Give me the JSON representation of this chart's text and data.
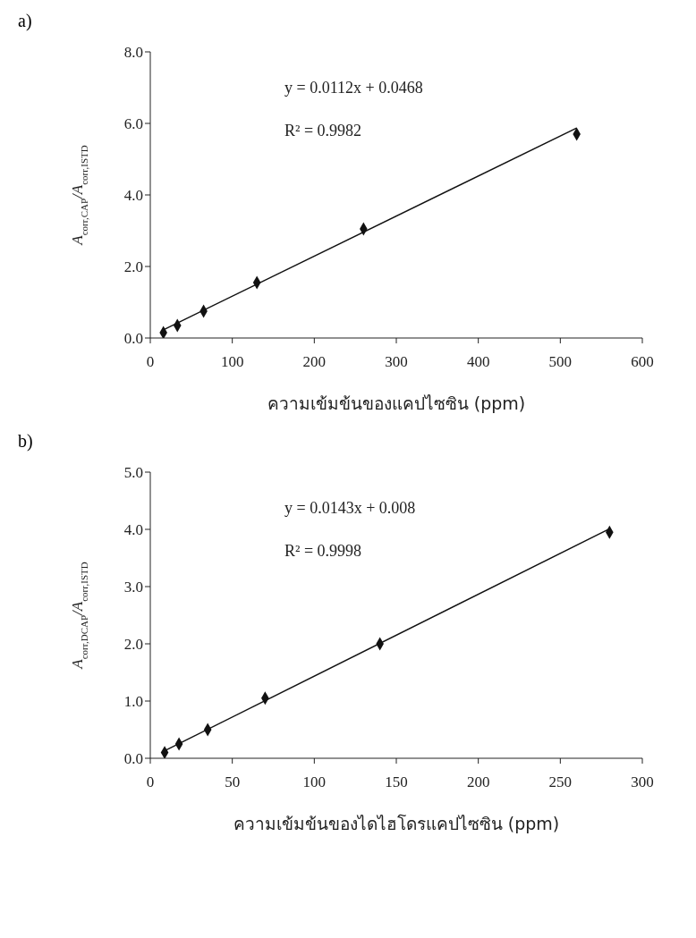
{
  "chart_data": [
    {
      "type": "scatter",
      "title": "a)",
      "xlabel": "ความเข้มข้นของแคปไซซิน (ppm)",
      "ylabel": "A$_{corr,CAP}$/A$_{corr,ISTD}$",
      "grid": false,
      "xlim": [
        0,
        600
      ],
      "xticks": [
        0,
        100,
        200,
        300,
        400,
        500,
        600
      ],
      "ylim": [
        0,
        8
      ],
      "yticks": [
        {
          "value": 0,
          "label": "0.0"
        },
        {
          "value": 2,
          "label": "2.0"
        },
        {
          "value": 4,
          "label": "4.0"
        },
        {
          "value": 6,
          "label": "6.0"
        },
        {
          "value": 8,
          "label": "8.0"
        }
      ],
      "annotations": [
        "y = 0.0112x + 0.0468",
        "R² = 0.9982"
      ],
      "series": [
        {
          "color": "#111111",
          "marker": "diamond",
          "x": [
            16,
            33,
            65,
            130,
            260,
            520
          ],
          "values": [
            0.15,
            0.35,
            0.75,
            1.55,
            3.05,
            5.7
          ]
        },
        {
          "type": "line",
          "marker": "none",
          "color": "#111111",
          "x": [
            16,
            520
          ],
          "values": [
            0.23,
            5.87
          ]
        }
      ]
    },
    {
      "type": "scatter",
      "title": "b)",
      "xlabel": "ความเข้มข้นของไดไฮโดรแคปไซซิน (ppm)",
      "ylabel": "A$_{corr,DCAP}$/A$_{corr,ISTD}$",
      "grid": false,
      "xlim": [
        0,
        300
      ],
      "xticks": [
        0,
        50,
        100,
        150,
        200,
        250,
        300
      ],
      "ylim": [
        0,
        5
      ],
      "yticks": [
        {
          "value": 0,
          "label": "0.0"
        },
        {
          "value": 1,
          "label": "1.0"
        },
        {
          "value": 2,
          "label": "2.0"
        },
        {
          "value": 3,
          "label": "3.0"
        },
        {
          "value": 4,
          "label": "4.0"
        },
        {
          "value": 5,
          "label": "5.0"
        }
      ],
      "annotations": [
        "y = 0.0143x + 0.008",
        "R² = 0.9998"
      ],
      "series": [
        {
          "color": "#111111",
          "marker": "diamond",
          "x": [
            8.75,
            17.5,
            35,
            70,
            140,
            280
          ],
          "values": [
            0.1,
            0.25,
            0.5,
            1.05,
            2.0,
            3.95
          ]
        },
        {
          "type": "line",
          "marker": "none",
          "color": "#111111",
          "x": [
            8.75,
            280
          ],
          "values": [
            0.13,
            4.01
          ]
        }
      ]
    }
  ]
}
